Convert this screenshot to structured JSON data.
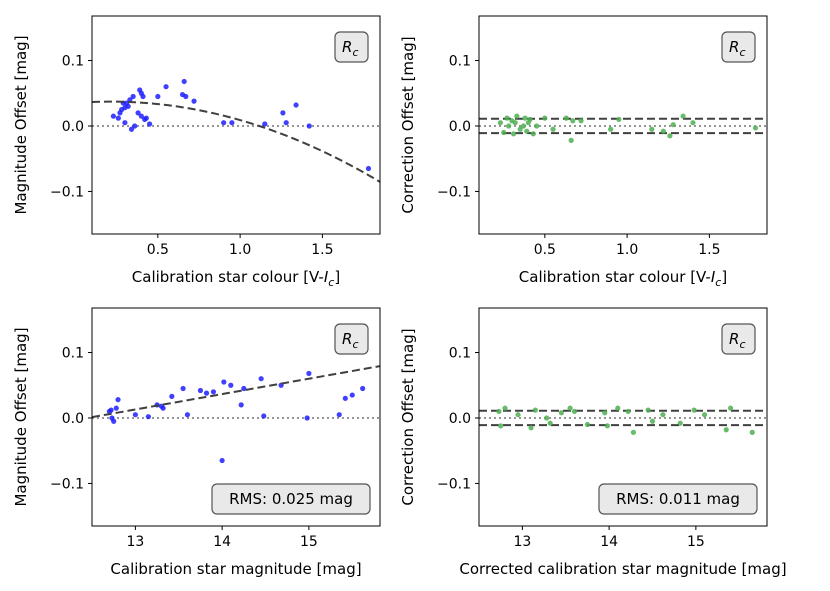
{
  "colors": {
    "blue": "#1f1fff",
    "green": "#4caf50",
    "dash": "#404040",
    "zero": "#888888",
    "box_bg": "#e9e9e9"
  },
  "chart_data": [
    {
      "type": "scatter",
      "band": "R_c",
      "band_label": {
        "base": "R",
        "sub": "c"
      },
      "xlabel": "Calibration star colour [V-I_c]",
      "xlabel_parts": {
        "pre": "Calibration star colour [V-",
        "var": "I",
        "sub": "c",
        "post": "]"
      },
      "ylabel": "Magnitude Offset [mag]",
      "xlim": [
        0.1,
        1.85
      ],
      "ylim": [
        -0.165,
        0.168
      ],
      "xticks": [
        0.5,
        1.0,
        1.5
      ],
      "xtick_labels": [
        "0.5",
        "1.0",
        "1.5"
      ],
      "yticks": [
        0.1,
        0.0,
        -0.1
      ],
      "ytick_labels": [
        "0.1",
        "0.0",
        "−0.1"
      ],
      "point_color": "blue",
      "x": [
        0.23,
        0.26,
        0.27,
        0.28,
        0.29,
        0.3,
        0.3,
        0.31,
        0.32,
        0.33,
        0.34,
        0.35,
        0.36,
        0.38,
        0.39,
        0.4,
        0.4,
        0.41,
        0.42,
        0.43,
        0.45,
        0.5,
        0.55,
        0.65,
        0.66,
        0.67,
        0.72,
        0.9,
        0.95,
        1.15,
        1.26,
        1.28,
        1.34,
        1.42,
        1.78
      ],
      "y": [
        0.015,
        0.012,
        0.02,
        0.025,
        0.035,
        0.028,
        0.005,
        0.035,
        0.03,
        0.04,
        -0.005,
        0.045,
        0.0,
        0.02,
        0.055,
        0.015,
        0.05,
        0.045,
        0.01,
        0.012,
        0.003,
        0.045,
        0.06,
        0.048,
        0.068,
        0.045,
        0.038,
        0.005,
        0.005,
        0.003,
        0.02,
        0.005,
        0.032,
        0.0,
        -0.065
      ],
      "fit": {
        "type": "quadratic",
        "c0": 0.035,
        "c1": 0.02,
        "c2": -0.046
      },
      "zero_line": 0.0
    },
    {
      "type": "scatter",
      "band": "R_c",
      "band_label": {
        "base": "R",
        "sub": "c"
      },
      "xlabel": "Calibration star colour [V-I_c]",
      "xlabel_parts": {
        "pre": "Calibration star colour [V-",
        "var": "I",
        "sub": "c",
        "post": "]"
      },
      "ylabel": "Correction Offset [mag]",
      "xlim": [
        0.1,
        1.85
      ],
      "ylim": [
        -0.165,
        0.168
      ],
      "xticks": [
        0.5,
        1.0,
        1.5
      ],
      "xtick_labels": [
        "0.5",
        "1.0",
        "1.5"
      ],
      "yticks": [
        0.1,
        0.0,
        -0.1
      ],
      "ytick_labels": [
        "0.1",
        "0.0",
        "−0.1"
      ],
      "point_color": "green",
      "x": [
        0.23,
        0.25,
        0.27,
        0.28,
        0.3,
        0.31,
        0.32,
        0.33,
        0.35,
        0.37,
        0.38,
        0.39,
        0.4,
        0.41,
        0.43,
        0.45,
        0.5,
        0.55,
        0.63,
        0.66,
        0.67,
        0.72,
        0.9,
        0.95,
        1.15,
        1.22,
        1.26,
        1.28,
        1.34,
        1.4,
        1.78
      ],
      "y": [
        0.005,
        -0.01,
        0.012,
        0.0,
        0.008,
        -0.012,
        0.005,
        0.015,
        -0.005,
        0.0,
        0.012,
        -0.008,
        0.005,
        0.01,
        -0.012,
        0.0,
        0.012,
        -0.005,
        0.012,
        -0.022,
        0.008,
        0.008,
        -0.005,
        0.01,
        -0.005,
        -0.008,
        -0.015,
        0.002,
        0.015,
        0.005,
        -0.003
      ],
      "rms_lines": [
        0.011,
        -0.011
      ],
      "zero_line": 0.0
    },
    {
      "type": "scatter",
      "band": "R_c",
      "band_label": {
        "base": "R",
        "sub": "c"
      },
      "xlabel": "Calibration star magnitude [mag]",
      "ylabel": "Magnitude Offset [mag]",
      "xlim": [
        12.5,
        15.82
      ],
      "ylim": [
        -0.165,
        0.168
      ],
      "xticks": [
        13,
        14,
        15
      ],
      "xtick_labels": [
        "13",
        "14",
        "15"
      ],
      "yticks": [
        0.1,
        0.0,
        -0.1
      ],
      "ytick_labels": [
        "0.1",
        "0.0",
        "−0.1"
      ],
      "point_color": "blue",
      "x": [
        12.7,
        12.72,
        12.73,
        12.75,
        12.78,
        12.8,
        13.0,
        13.15,
        13.25,
        13.3,
        13.32,
        13.42,
        13.55,
        13.6,
        13.75,
        13.82,
        13.9,
        14.0,
        14.02,
        14.1,
        14.22,
        14.25,
        14.45,
        14.48,
        14.68,
        14.98,
        15.0,
        15.35,
        15.42,
        15.5,
        15.62
      ],
      "y": [
        0.01,
        0.012,
        0.0,
        -0.005,
        0.015,
        0.028,
        0.005,
        0.002,
        0.02,
        0.018,
        0.015,
        0.033,
        0.045,
        0.005,
        0.042,
        0.038,
        0.04,
        -0.065,
        0.055,
        0.05,
        0.02,
        0.045,
        0.06,
        0.003,
        0.05,
        0.0,
        0.068,
        0.005,
        0.03,
        0.035,
        0.045
      ],
      "fit": {
        "type": "linear",
        "slope": 0.0235,
        "intercept": -0.2925
      },
      "zero_line": 0.0,
      "rms_label": "RMS: 0.025 mag"
    },
    {
      "type": "scatter",
      "band": "R_c",
      "band_label": {
        "base": "R",
        "sub": "c"
      },
      "xlabel": "Corrected calibration star magnitude [mag]",
      "ylabel": "Correction Offset [mag]",
      "xlim": [
        12.5,
        15.82
      ],
      "ylim": [
        -0.165,
        0.168
      ],
      "xticks": [
        13,
        14,
        15
      ],
      "xtick_labels": [
        "13",
        "14",
        "15"
      ],
      "yticks": [
        0.1,
        0.0,
        -0.1
      ],
      "ytick_labels": [
        "0.1",
        "0.0",
        "−0.1"
      ],
      "point_color": "green",
      "x": [
        12.73,
        12.75,
        12.8,
        12.95,
        13.1,
        13.15,
        13.28,
        13.32,
        13.45,
        13.55,
        13.6,
        13.75,
        13.95,
        13.98,
        14.1,
        14.22,
        14.28,
        14.45,
        14.5,
        14.62,
        14.82,
        14.98,
        15.1,
        15.35,
        15.4,
        15.65
      ],
      "y": [
        0.01,
        -0.012,
        0.015,
        0.005,
        -0.015,
        0.012,
        0.0,
        -0.008,
        0.008,
        0.015,
        0.01,
        -0.01,
        0.008,
        -0.012,
        0.015,
        0.01,
        -0.022,
        0.012,
        -0.005,
        0.005,
        -0.008,
        0.012,
        0.005,
        -0.018,
        0.015,
        -0.022
      ],
      "rms_lines": [
        0.011,
        -0.011
      ],
      "zero_line": 0.0,
      "rms_label": "RMS: 0.011 mag"
    }
  ]
}
